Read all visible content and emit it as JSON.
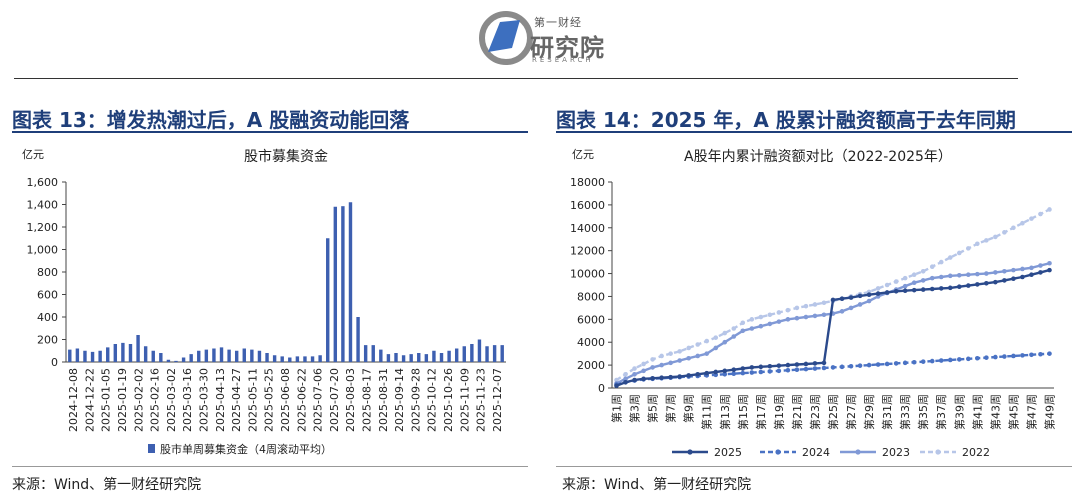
{
  "header": {
    "logo_cn_top": "第一财经",
    "logo_cn": "研究院",
    "logo_en": "RESEARCH"
  },
  "left": {
    "figure_title": "图表 13：增发热潮过后，A 股融资动能回落",
    "source": "来源：Wind、第一财经研究院"
  },
  "right": {
    "figure_title": "图表 14：2025 年，A 股累计融资额高于去年同期",
    "source": "来源：Wind、第一财经研究院"
  },
  "colors": {
    "bar": "#3d5fb0",
    "s2025": "#2b4a8c",
    "s2024": "#4a72c4",
    "s2023": "#8099d6",
    "s2022": "#b7c6e8",
    "title": "#1f3f7a"
  },
  "chart_data": [
    {
      "type": "bar",
      "title": "股市募集资金",
      "ylabel": "亿元",
      "ylim": [
        0,
        1600
      ],
      "yticks": [
        "0",
        "200",
        "400",
        "600",
        "800",
        "1,000",
        "1,200",
        "1,400",
        "1,600"
      ],
      "ytick_values": [
        0,
        200,
        400,
        600,
        800,
        1000,
        1200,
        1400,
        1600
      ],
      "legend": "股市单周募集资金（4周滚动平均）",
      "legend_position": "bottom",
      "x_tick_labels": [
        "2024-12-08",
        "2024-12-22",
        "2025-01-05",
        "2025-01-19",
        "2025-02-02",
        "2025-02-16",
        "2025-03-02",
        "2025-03-16",
        "2025-03-30",
        "2025-04-13",
        "2025-04-27",
        "2025-05-11",
        "2025-05-25",
        "2025-06-08",
        "2025-06-22",
        "2025-07-06",
        "2025-07-20",
        "2025-08-03",
        "2025-08-17",
        "2025-08-31",
        "2025-09-14",
        "2025-09-28",
        "2025-10-12",
        "2025-10-26",
        "2025-11-09",
        "2025-11-23",
        "2025-12-07"
      ],
      "values": [
        110,
        120,
        100,
        90,
        100,
        130,
        160,
        170,
        160,
        240,
        140,
        100,
        80,
        20,
        10,
        40,
        70,
        100,
        110,
        120,
        130,
        110,
        100,
        120,
        110,
        100,
        80,
        60,
        50,
        40,
        50,
        50,
        50,
        60,
        1100,
        1380,
        1385,
        1420,
        400,
        150,
        150,
        110,
        70,
        80,
        60,
        70,
        80,
        70,
        100,
        80,
        100,
        120,
        140,
        160,
        200,
        140,
        150,
        150
      ]
    },
    {
      "type": "line",
      "title": "A股年内累计融资额对比（2022-2025年）",
      "ylabel": "亿元",
      "ylim": [
        0,
        18000
      ],
      "yticks": [
        "0",
        "2000",
        "4000",
        "6000",
        "8000",
        "10000",
        "12000",
        "14000",
        "16000",
        "18000"
      ],
      "ytick_values": [
        0,
        2000,
        4000,
        6000,
        8000,
        10000,
        12000,
        14000,
        16000,
        18000
      ],
      "x_tick_labels": [
        "第1周",
        "第3周",
        "第5周",
        "第7周",
        "第9周",
        "第11周",
        "第13周",
        "第15周",
        "第17周",
        "第19周",
        "第21周",
        "第23周",
        "第25周",
        "第27周",
        "第29周",
        "第31周",
        "第33周",
        "第35周",
        "第37周",
        "第39周",
        "第41周",
        "第43周",
        "第45周",
        "第47周",
        "第49周"
      ],
      "legend_position": "bottom",
      "series": [
        {
          "name": "2025",
          "style": "solid",
          "values": [
            200,
            500,
            700,
            800,
            850,
            900,
            950,
            1000,
            1100,
            1200,
            1300,
            1400,
            1500,
            1600,
            1700,
            1800,
            1850,
            1900,
            1950,
            2000,
            2050,
            2100,
            2150,
            2200,
            7700,
            7800,
            7900,
            8050,
            8150,
            8250,
            8350,
            8450,
            8500,
            8550,
            8600,
            8650,
            8700,
            8750,
            8850,
            8950,
            9050,
            9150,
            9250,
            9400,
            9550,
            9700,
            9900,
            10100,
            10300
          ]
        },
        {
          "name": "2024",
          "style": "dashed",
          "values": [
            300,
            500,
            650,
            750,
            800,
            850,
            900,
            950,
            1000,
            1050,
            1100,
            1150,
            1200,
            1250,
            1300,
            1350,
            1400,
            1450,
            1500,
            1550,
            1600,
            1650,
            1700,
            1750,
            1800,
            1850,
            1900,
            1950,
            2000,
            2050,
            2100,
            2150,
            2200,
            2250,
            2300,
            2350,
            2400,
            2450,
            2500,
            2550,
            2600,
            2650,
            2700,
            2750,
            2800,
            2850,
            2900,
            2950,
            3000
          ]
        },
        {
          "name": "2023",
          "style": "solid",
          "values": [
            400,
            800,
            1200,
            1500,
            1800,
            2000,
            2200,
            2400,
            2600,
            2800,
            3000,
            3500,
            4000,
            4500,
            5000,
            5200,
            5400,
            5600,
            5800,
            6000,
            6100,
            6200,
            6300,
            6400,
            6500,
            6700,
            7000,
            7300,
            7600,
            8000,
            8300,
            8600,
            8900,
            9200,
            9400,
            9600,
            9700,
            9800,
            9850,
            9900,
            9950,
            10000,
            10100,
            10200,
            10300,
            10400,
            10500,
            10700,
            10900
          ]
        },
        {
          "name": "2022",
          "style": "dashed",
          "values": [
            700,
            1200,
            1700,
            2100,
            2500,
            2800,
            3000,
            3200,
            3500,
            3800,
            4100,
            4400,
            4800,
            5200,
            5700,
            6000,
            6200,
            6400,
            6600,
            6800,
            7000,
            7150,
            7300,
            7450,
            7600,
            7800,
            8000,
            8200,
            8400,
            8700,
            9000,
            9300,
            9600,
            9900,
            10200,
            10600,
            11000,
            11400,
            11800,
            12200,
            12600,
            12900,
            13200,
            13600,
            14000,
            14400,
            14800,
            15200,
            15600
          ]
        }
      ]
    }
  ]
}
